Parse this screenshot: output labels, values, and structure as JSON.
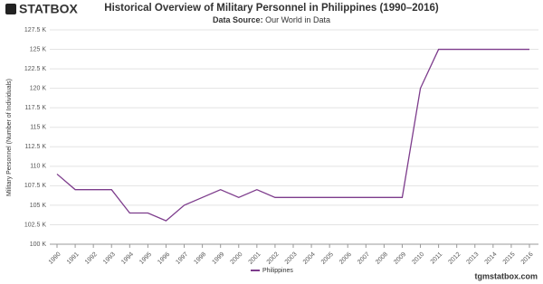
{
  "chart_data": {
    "type": "line",
    "logo": "STATBOX",
    "title": "Historical Overview of Military Personnel in Philippines (1990–2016)",
    "source_label": "Data Source:",
    "source": "Our World in Data",
    "y_label": "Military Personnel (Number of Individuals)",
    "watermark": "tgmstatbox.com",
    "categories": [
      "1990",
      "1991",
      "1992",
      "1993",
      "1994",
      "1995",
      "1996",
      "1997",
      "1998",
      "1999",
      "2000",
      "2001",
      "2002",
      "2003",
      "2004",
      "2005",
      "2006",
      "2007",
      "2008",
      "2009",
      "2010",
      "2011",
      "2012",
      "2013",
      "2014",
      "2015",
      "2016"
    ],
    "series": [
      {
        "name": "Philippines",
        "color": "#7d3c8c",
        "values": [
          109000,
          107000,
          107000,
          107000,
          104000,
          104000,
          103000,
          105000,
          106000,
          107000,
          106000,
          107000,
          106000,
          106000,
          106000,
          106000,
          106000,
          106000,
          106000,
          106000,
          120000,
          125000,
          125000,
          125000,
          125000,
          125000,
          125000
        ]
      }
    ],
    "ylim": [
      100000,
      127500
    ],
    "yticks": [
      {
        "value": 100000,
        "label": "100 K"
      },
      {
        "value": 102500,
        "label": "102.5 K"
      },
      {
        "value": 105000,
        "label": "105 K"
      },
      {
        "value": 107500,
        "label": "107.5 K"
      },
      {
        "value": 110000,
        "label": "110 K"
      },
      {
        "value": 112500,
        "label": "112.5 K"
      },
      {
        "value": 115000,
        "label": "115 K"
      },
      {
        "value": 117500,
        "label": "117.5 K"
      },
      {
        "value": 120000,
        "label": "120 K"
      },
      {
        "value": 122500,
        "label": "122.5 K"
      },
      {
        "value": 125000,
        "label": "125 K"
      },
      {
        "value": 127500,
        "label": "127.5 K"
      }
    ],
    "grid": true
  }
}
